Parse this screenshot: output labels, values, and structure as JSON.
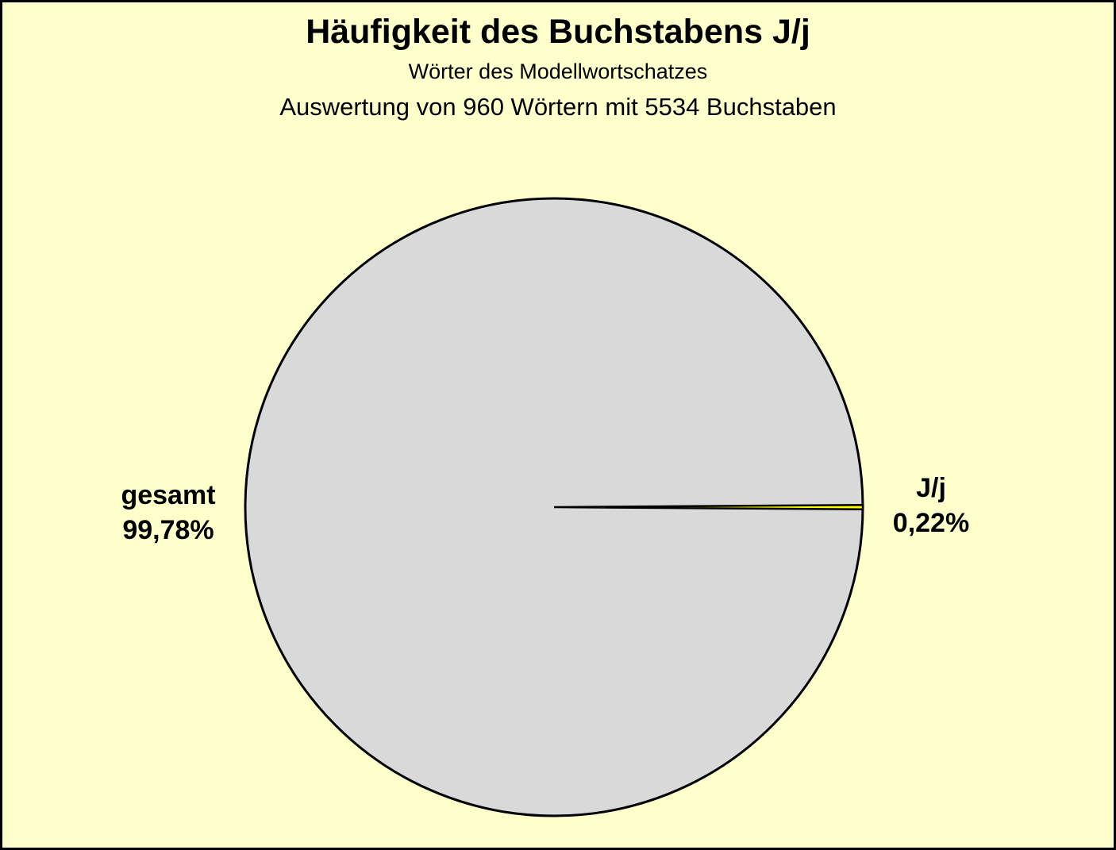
{
  "page": {
    "background_color": "#FFFFCC",
    "frame_color": "#000000"
  },
  "header": {
    "title": "Häufigkeit des Buchstabens J/j",
    "subtitle": "Wörter des Modellwortschatzes",
    "description": "Auswertung von 960 Wörtern mit 5534 Buchstaben"
  },
  "chart_data": {
    "type": "pie",
    "title": "Häufigkeit des Buchstabens J/j",
    "subtitle": "Wörter des Modellwortschatzes",
    "annotation": "Auswertung von 960 Wörtern mit 5534 Buchstaben",
    "total_words": 960,
    "total_letters": 5534,
    "legend_position": "none",
    "labels_position": "outside",
    "outline_color": "#000000",
    "slices": [
      {
        "label": "gesamt",
        "value_pct": 99.78,
        "display": "99,78%",
        "color": "#D9D9D9"
      },
      {
        "label": "J/j",
        "value_pct": 0.22,
        "display": "0,22%",
        "color": "#FFFF00"
      }
    ],
    "small_slice_center_angle_deg": 0
  }
}
